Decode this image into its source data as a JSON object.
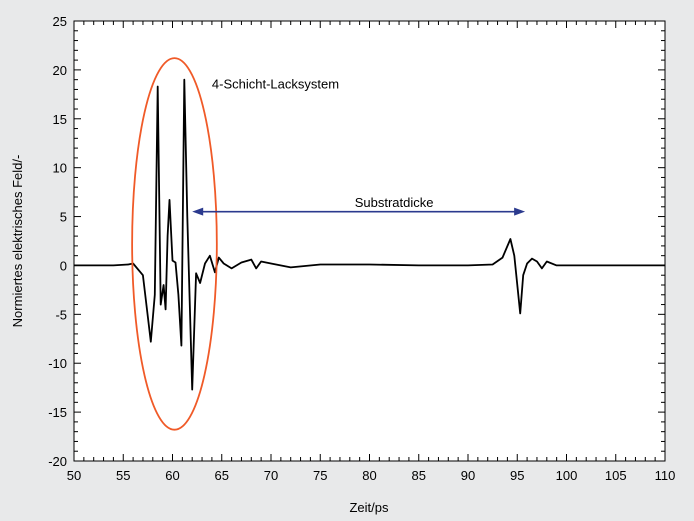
{
  "chart_data": {
    "type": "line",
    "title": "",
    "xlabel": "Zeit/ps",
    "ylabel": "Normiertes elektrisches Feld/-",
    "xlim": [
      50,
      110
    ],
    "ylim": [
      -20,
      25
    ],
    "x_ticks": [
      50,
      55,
      60,
      65,
      70,
      75,
      80,
      85,
      90,
      95,
      100,
      105,
      110
    ],
    "y_ticks": [
      -20,
      -15,
      -10,
      -5,
      0,
      5,
      10,
      15,
      20,
      25
    ],
    "grid": false,
    "series": [
      {
        "color": "#000000",
        "x": [
          50,
          54,
          55.5,
          56.0,
          57.0,
          57.8,
          58.2,
          58.5,
          58.8,
          59.1,
          59.3,
          59.5,
          59.7,
          60.0,
          60.3,
          60.6,
          60.9,
          61.2,
          61.5,
          62.0,
          62.4,
          62.8,
          63.3,
          63.8,
          64.3,
          64.7,
          65.2,
          66.0,
          67.0,
          68.0,
          68.5,
          69.0,
          70.0,
          72.0,
          75.0,
          80.0,
          85.0,
          90.0,
          92.5,
          93.5,
          94.3,
          94.7,
          95.0,
          95.3,
          95.6,
          96.0,
          96.5,
          97.0,
          97.5,
          98.0,
          99.0,
          100.0,
          105.0,
          110.0
        ],
        "y": [
          0.0,
          0.0,
          0.1,
          0.2,
          -1.0,
          -7.8,
          -3.0,
          18.3,
          -4.0,
          -2.0,
          -4.5,
          3.0,
          6.7,
          0.5,
          0.3,
          -3.0,
          -8.2,
          19.0,
          5.0,
          -12.7,
          -0.8,
          -1.8,
          0.2,
          1.0,
          -0.7,
          0.8,
          0.2,
          -0.3,
          0.3,
          0.6,
          -0.3,
          0.4,
          0.2,
          -0.2,
          0.1,
          0.1,
          0.0,
          0.0,
          0.1,
          0.8,
          2.7,
          1.0,
          -2.0,
          -4.9,
          -1.0,
          0.2,
          0.7,
          0.4,
          -0.3,
          0.4,
          0.0,
          0.0,
          0.0,
          0.0
        ]
      }
    ],
    "annotations": [
      {
        "text": "4-Schicht-Lacksystem",
        "x": 64.0,
        "y": 18.6
      },
      {
        "text": "Substratdicke",
        "x": 78.5,
        "y": 6.5
      }
    ],
    "ellipse": {
      "cx": 60.2,
      "cy": 2.2,
      "rx": 4.3,
      "ry": 19.0,
      "color": "#f05a28"
    },
    "arrow": {
      "x1": 62.0,
      "x2": 95.8,
      "y": 5.5,
      "color": "#2b3a8e"
    }
  }
}
